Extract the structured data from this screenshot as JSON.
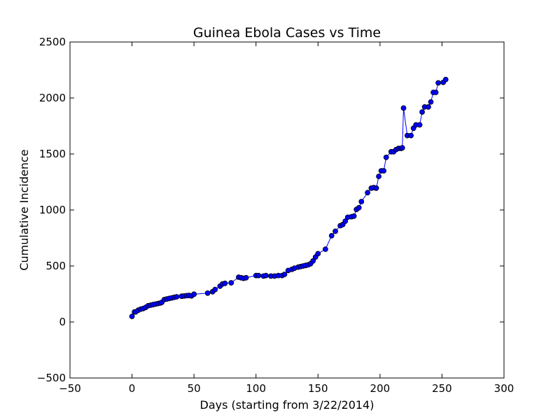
{
  "chart_data": {
    "type": "line",
    "title": "Guinea Ebola Cases vs Time",
    "xlabel": "Days (starting from 3/22/2014)",
    "ylabel": "Cumulative Incidence",
    "xlim": [
      -50,
      300
    ],
    "ylim": [
      -500,
      2500
    ],
    "xticks": [
      -50,
      0,
      50,
      100,
      150,
      200,
      250,
      300
    ],
    "yticks": [
      -500,
      0,
      500,
      1000,
      1500,
      2000,
      2500
    ],
    "xtick_labels": [
      "−50",
      "0",
      "50",
      "100",
      "150",
      "200",
      "250",
      "300"
    ],
    "ytick_labels": [
      "−500",
      "0",
      "500",
      "1000",
      "1500",
      "2000",
      "2500"
    ],
    "grid": false,
    "markers": true,
    "line_color": "#0000ff",
    "marker_color": "#0000ff",
    "marker_edge_color": "#000000",
    "series": [
      {
        "x": [
          0,
          2,
          3,
          5,
          7,
          9,
          11,
          13,
          15,
          17,
          19,
          21,
          23,
          24,
          26,
          28,
          30,
          32,
          34,
          36,
          40,
          42,
          44,
          46,
          48,
          50,
          61,
          65,
          67,
          71,
          73,
          75,
          80,
          86,
          88,
          90,
          92,
          100,
          102,
          106,
          108,
          112,
          115,
          118,
          121,
          123,
          126,
          129,
          131,
          134,
          136,
          138,
          140,
          142,
          144,
          146,
          148,
          150,
          156,
          161,
          164,
          168,
          170,
          172,
          174,
          177,
          179,
          181,
          183,
          185,
          190,
          193,
          195,
          197,
          199,
          201,
          203,
          205,
          209,
          211,
          213,
          215,
          217,
          218,
          219,
          222,
          225,
          227,
          229,
          232,
          234,
          236,
          239,
          241,
          243,
          245,
          247,
          251,
          253
        ],
        "y": [
          50,
          90,
          90,
          105,
          115,
          120,
          130,
          145,
          150,
          155,
          160,
          165,
          170,
          175,
          200,
          205,
          210,
          215,
          220,
          225,
          230,
          232,
          235,
          237,
          233,
          248,
          258,
          270,
          290,
          320,
          340,
          345,
          350,
          400,
          395,
          390,
          395,
          415,
          415,
          410,
          415,
          410,
          410,
          415,
          415,
          425,
          460,
          470,
          480,
          490,
          495,
          500,
          505,
          510,
          520,
          545,
          580,
          610,
          650,
          770,
          810,
          860,
          870,
          900,
          935,
          940,
          945,
          1005,
          1020,
          1075,
          1155,
          1195,
          1200,
          1195,
          1300,
          1350,
          1350,
          1470,
          1520,
          1520,
          1540,
          1550,
          1550,
          1555,
          1910,
          1665,
          1665,
          1730,
          1760,
          1760,
          1875,
          1920,
          1920,
          1965,
          2050,
          2050,
          2135,
          2140,
          2165
        ]
      }
    ]
  }
}
